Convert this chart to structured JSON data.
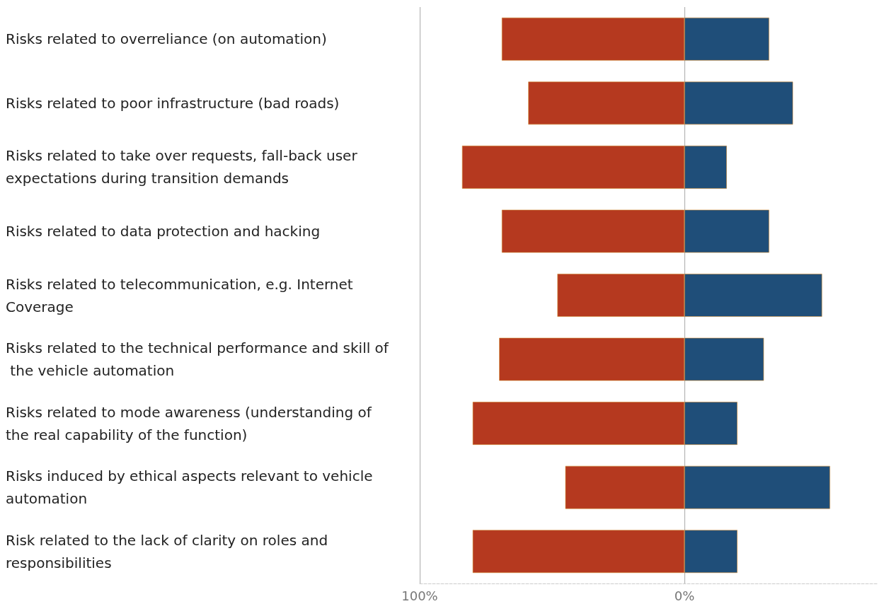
{
  "chart_data": {
    "type": "bar",
    "orientation": "horizontal",
    "categories": [
      "Risks related to overreliance (on automation)",
      "Risks related to poor infrastructure (bad roads)",
      "Risks related to take over requests, fall-back user expectations during transition demands",
      "Risks related to data protection and hacking",
      "Risks related to telecommunication, e.g. Internet Coverage",
      "Risks related to the technical performance and skill of the vehicle automation",
      "Risks related to mode awareness (understanding of the real capability of the function)",
      "Risks induced by ethical aspects relevant to vehicle automation",
      "Risk related to the lack of clarity on roles and responsibilities"
    ],
    "series": [
      {
        "color": "#b5391f",
        "values": [
          -69,
          -59,
          -84,
          -69,
          -48,
          -70,
          -80,
          -45,
          -80
        ]
      },
      {
        "color": "#1f4e79",
        "values": [
          32,
          41,
          16,
          32,
          52,
          30,
          20,
          55,
          20
        ]
      }
    ],
    "xlim": [
      -100,
      73
    ],
    "xticks": [
      {
        "value": -100,
        "label": "100%"
      },
      {
        "value": 0,
        "label": "0%"
      }
    ],
    "stacked": true,
    "grid": "x"
  }
}
